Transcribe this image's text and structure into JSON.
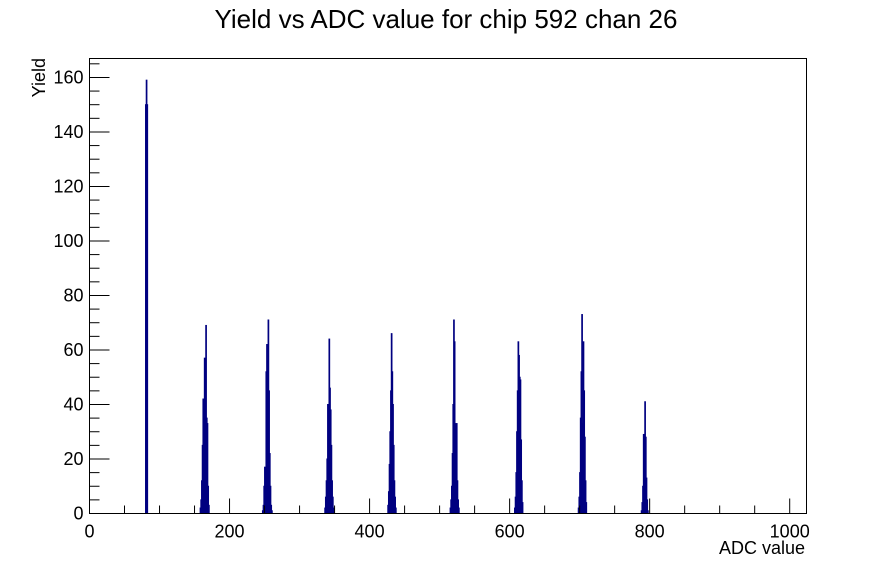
{
  "colors": {
    "background": "#ffffff",
    "frame": "#000000",
    "histogram": "#000080"
  },
  "chart_data": {
    "type": "histogram",
    "title": "Yield vs ADC value for chip 592 chan 26",
    "xlabel": "ADC value",
    "ylabel": "Yield",
    "xlim": [
      0,
      1024
    ],
    "ylim": [
      0,
      166.95
    ],
    "x_tick_labels": [
      "0",
      "200",
      "400",
      "600",
      "800",
      "1000"
    ],
    "y_tick_labels": [
      "0",
      "20",
      "40",
      "60",
      "80",
      "100",
      "120",
      "140",
      "160"
    ],
    "grid": false,
    "legend": "none",
    "bins": [
      {
        "x": 80,
        "y": 150
      },
      {
        "x": 81,
        "y": 159
      },
      {
        "x": 82,
        "y": 150
      },
      {
        "x": 158,
        "y": 2
      },
      {
        "x": 159,
        "y": 5
      },
      {
        "x": 160,
        "y": 12
      },
      {
        "x": 161,
        "y": 25
      },
      {
        "x": 162,
        "y": 42
      },
      {
        "x": 163,
        "y": 38
      },
      {
        "x": 164,
        "y": 57
      },
      {
        "x": 165,
        "y": 47
      },
      {
        "x": 166,
        "y": 69
      },
      {
        "x": 167,
        "y": 35
      },
      {
        "x": 168,
        "y": 33
      },
      {
        "x": 169,
        "y": 10
      },
      {
        "x": 170,
        "y": 3
      },
      {
        "x": 247,
        "y": 1
      },
      {
        "x": 248,
        "y": 3
      },
      {
        "x": 249,
        "y": 10
      },
      {
        "x": 250,
        "y": 17
      },
      {
        "x": 251,
        "y": 11
      },
      {
        "x": 252,
        "y": 52
      },
      {
        "x": 253,
        "y": 62
      },
      {
        "x": 254,
        "y": 56
      },
      {
        "x": 255,
        "y": 71
      },
      {
        "x": 256,
        "y": 45
      },
      {
        "x": 257,
        "y": 22
      },
      {
        "x": 258,
        "y": 10
      },
      {
        "x": 259,
        "y": 3
      },
      {
        "x": 260,
        "y": 1
      },
      {
        "x": 336,
        "y": 2
      },
      {
        "x": 337,
        "y": 6
      },
      {
        "x": 338,
        "y": 12
      },
      {
        "x": 339,
        "y": 20
      },
      {
        "x": 340,
        "y": 40
      },
      {
        "x": 341,
        "y": 32
      },
      {
        "x": 342,
        "y": 64
      },
      {
        "x": 343,
        "y": 46
      },
      {
        "x": 344,
        "y": 38
      },
      {
        "x": 345,
        "y": 25
      },
      {
        "x": 346,
        "y": 12
      },
      {
        "x": 347,
        "y": 6
      },
      {
        "x": 348,
        "y": 2
      },
      {
        "x": 426,
        "y": 3
      },
      {
        "x": 427,
        "y": 8
      },
      {
        "x": 428,
        "y": 18
      },
      {
        "x": 429,
        "y": 30
      },
      {
        "x": 430,
        "y": 45
      },
      {
        "x": 431,
        "y": 66
      },
      {
        "x": 432,
        "y": 52
      },
      {
        "x": 433,
        "y": 40
      },
      {
        "x": 434,
        "y": 25
      },
      {
        "x": 435,
        "y": 12
      },
      {
        "x": 436,
        "y": 6
      },
      {
        "x": 437,
        "y": 2
      },
      {
        "x": 515,
        "y": 2
      },
      {
        "x": 516,
        "y": 5
      },
      {
        "x": 517,
        "y": 10
      },
      {
        "x": 518,
        "y": 22
      },
      {
        "x": 519,
        "y": 40
      },
      {
        "x": 520,
        "y": 71
      },
      {
        "x": 521,
        "y": 63
      },
      {
        "x": 522,
        "y": 33
      },
      {
        "x": 523,
        "y": 28
      },
      {
        "x": 524,
        "y": 33
      },
      {
        "x": 525,
        "y": 12
      },
      {
        "x": 526,
        "y": 5
      },
      {
        "x": 527,
        "y": 2
      },
      {
        "x": 607,
        "y": 2
      },
      {
        "x": 608,
        "y": 6
      },
      {
        "x": 609,
        "y": 15
      },
      {
        "x": 610,
        "y": 30
      },
      {
        "x": 611,
        "y": 45
      },
      {
        "x": 612,
        "y": 63
      },
      {
        "x": 613,
        "y": 58
      },
      {
        "x": 614,
        "y": 50
      },
      {
        "x": 615,
        "y": 49
      },
      {
        "x": 616,
        "y": 27
      },
      {
        "x": 617,
        "y": 12
      },
      {
        "x": 618,
        "y": 4
      },
      {
        "x": 698,
        "y": 2
      },
      {
        "x": 699,
        "y": 6
      },
      {
        "x": 700,
        "y": 15
      },
      {
        "x": 701,
        "y": 35
      },
      {
        "x": 702,
        "y": 52
      },
      {
        "x": 703,
        "y": 73
      },
      {
        "x": 704,
        "y": 33
      },
      {
        "x": 705,
        "y": 63
      },
      {
        "x": 706,
        "y": 45
      },
      {
        "x": 707,
        "y": 28
      },
      {
        "x": 708,
        "y": 12
      },
      {
        "x": 709,
        "y": 4
      },
      {
        "x": 788,
        "y": 1
      },
      {
        "x": 789,
        "y": 4
      },
      {
        "x": 790,
        "y": 10
      },
      {
        "x": 791,
        "y": 29
      },
      {
        "x": 792,
        "y": 25
      },
      {
        "x": 793,
        "y": 41
      },
      {
        "x": 794,
        "y": 28
      },
      {
        "x": 795,
        "y": 13
      },
      {
        "x": 796,
        "y": 5
      },
      {
        "x": 797,
        "y": 1
      }
    ]
  }
}
